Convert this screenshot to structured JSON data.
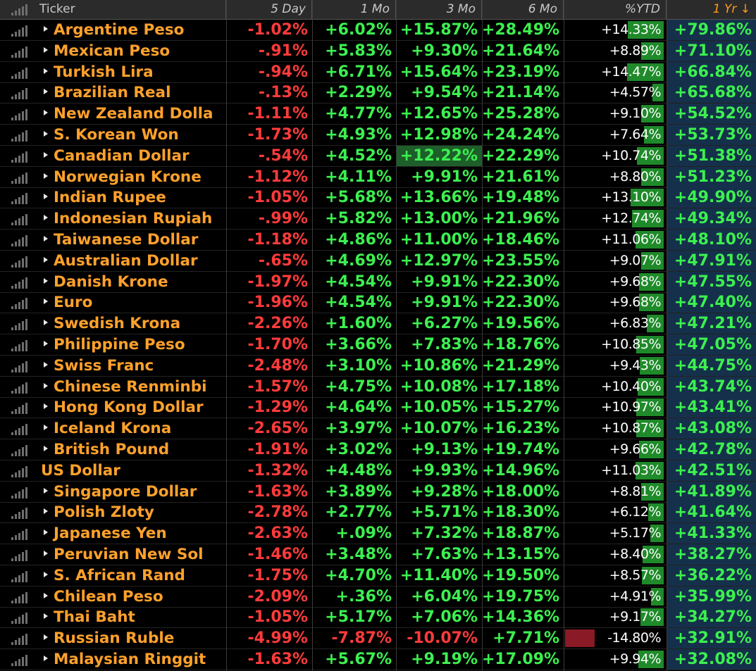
{
  "header": {
    "ticker": "Ticker",
    "d5": "5 Day",
    "m1": "1 Mo",
    "m3": "3 Mo",
    "m6": "6 Mo",
    "ytd": "%YTD",
    "y1": "1 Yr ↓"
  },
  "colors": {
    "positive": "#3cf050",
    "negative": "#ff3b3b",
    "name": "#ffa12b",
    "sorted_header": "#ff9a1a",
    "year_bg": "#15304b",
    "ytd_bar": "#1f8a2a",
    "ytd_neg_bar": "#8a1a25"
  },
  "rows": [
    {
      "name": "Argentine Peso",
      "arrow": true,
      "d5": "-1.02%",
      "m1": "+6.02%",
      "m3": "+15.87%",
      "m6": "+28.49%",
      "ytd_sign": "+",
      "ytd": "14.33%",
      "ytd_level": 0.63,
      "y1": "+79.86%"
    },
    {
      "name": "Mexican Peso",
      "arrow": true,
      "d5": "-.91%",
      "m1": "+5.83%",
      "m3": "+9.30%",
      "m6": "+21.64%",
      "ytd_sign": "+",
      "ytd": "8.89%",
      "ytd_level": 0.39,
      "y1": "+71.10%"
    },
    {
      "name": "Turkish Lira",
      "arrow": true,
      "d5": "-.94%",
      "m1": "+6.71%",
      "m3": "+15.64%",
      "m6": "+23.19%",
      "ytd_sign": "+",
      "ytd": "14.47%",
      "ytd_level": 0.64,
      "y1": "+66.84%"
    },
    {
      "name": "Brazilian Real",
      "arrow": true,
      "d5": "-.13%",
      "m1": "+2.29%",
      "m3": "+9.54%",
      "m6": "+21.14%",
      "ytd_sign": "+",
      "ytd": "4.57%",
      "ytd_level": 0.2,
      "y1": "+65.68%"
    },
    {
      "name": "New Zealand Dolla",
      "arrow": true,
      "d5": "-1.11%",
      "m1": "+4.77%",
      "m3": "+12.65%",
      "m6": "+25.28%",
      "ytd_sign": "+",
      "ytd": "9.10%",
      "ytd_level": 0.4,
      "y1": "+54.52%"
    },
    {
      "name": "S. Korean Won",
      "arrow": true,
      "d5": "-1.73%",
      "m1": "+4.93%",
      "m3": "+12.98%",
      "m6": "+24.24%",
      "ytd_sign": "+",
      "ytd": "7.64%",
      "ytd_level": 0.34,
      "y1": "+53.73%"
    },
    {
      "name": "Canadian Dollar",
      "arrow": true,
      "d5": "-.54%",
      "m1": "+4.52%",
      "m3": "+12.22%",
      "m6": "+22.29%",
      "ytd_sign": "+",
      "ytd": "10.74%",
      "ytd_level": 0.47,
      "y1": "+51.38%",
      "m3_highlight": true
    },
    {
      "name": "Norwegian Krone",
      "arrow": true,
      "d5": "-1.12%",
      "m1": "+4.11%",
      "m3": "+9.91%",
      "m6": "+21.61%",
      "ytd_sign": "+",
      "ytd": "8.80%",
      "ytd_level": 0.39,
      "y1": "+51.23%"
    },
    {
      "name": "Indian Rupee",
      "arrow": true,
      "d5": "-1.05%",
      "m1": "+5.68%",
      "m3": "+13.66%",
      "m6": "+19.48%",
      "ytd_sign": "+",
      "ytd": "13.10%",
      "ytd_level": 0.58,
      "y1": "+49.90%"
    },
    {
      "name": "Indonesian Rupiah",
      "arrow": true,
      "d5": "-.99%",
      "m1": "+5.82%",
      "m3": "+13.00%",
      "m6": "+21.96%",
      "ytd_sign": "+",
      "ytd": "12.74%",
      "ytd_level": 0.56,
      "y1": "+49.34%"
    },
    {
      "name": "Taiwanese Dollar",
      "arrow": true,
      "d5": "-1.18%",
      "m1": "+4.86%",
      "m3": "+11.00%",
      "m6": "+18.46%",
      "ytd_sign": "+",
      "ytd": "11.06%",
      "ytd_level": 0.49,
      "y1": "+48.10%"
    },
    {
      "name": "Australian Dollar",
      "arrow": true,
      "d5": "-.65%",
      "m1": "+4.69%",
      "m3": "+12.97%",
      "m6": "+23.55%",
      "ytd_sign": "+",
      "ytd": "9.07%",
      "ytd_level": 0.4,
      "y1": "+47.91%"
    },
    {
      "name": "Danish Krone",
      "arrow": true,
      "d5": "-1.97%",
      "m1": "+4.54%",
      "m3": "+9.91%",
      "m6": "+22.30%",
      "ytd_sign": "+",
      "ytd": "9.68%",
      "ytd_level": 0.43,
      "y1": "+47.55%"
    },
    {
      "name": "Euro",
      "arrow": true,
      "d5": "-1.96%",
      "m1": "+4.54%",
      "m3": "+9.91%",
      "m6": "+22.30%",
      "ytd_sign": "+",
      "ytd": "9.68%",
      "ytd_level": 0.43,
      "y1": "+47.40%"
    },
    {
      "name": "Swedish Krona",
      "arrow": true,
      "d5": "-2.26%",
      "m1": "+1.60%",
      "m3": "+6.27%",
      "m6": "+19.56%",
      "ytd_sign": "+",
      "ytd": "6.83%",
      "ytd_level": 0.3,
      "y1": "+47.21%"
    },
    {
      "name": "Philippine Peso",
      "arrow": true,
      "d5": "-1.70%",
      "m1": "+3.66%",
      "m3": "+7.83%",
      "m6": "+18.76%",
      "ytd_sign": "+",
      "ytd": "10.85%",
      "ytd_level": 0.48,
      "y1": "+47.05%"
    },
    {
      "name": "Swiss Franc",
      "arrow": true,
      "d5": "-2.48%",
      "m1": "+3.10%",
      "m3": "+10.86%",
      "m6": "+21.29%",
      "ytd_sign": "+",
      "ytd": "9.43%",
      "ytd_level": 0.42,
      "y1": "+44.75%"
    },
    {
      "name": "Chinese Renminbi",
      "arrow": true,
      "d5": "-1.57%",
      "m1": "+4.75%",
      "m3": "+10.08%",
      "m6": "+17.18%",
      "ytd_sign": "+",
      "ytd": "10.40%",
      "ytd_level": 0.46,
      "y1": "+43.74%"
    },
    {
      "name": "Hong Kong Dollar",
      "arrow": true,
      "d5": "-1.29%",
      "m1": "+4.64%",
      "m3": "+10.05%",
      "m6": "+15.27%",
      "ytd_sign": "+",
      "ytd": "10.97%",
      "ytd_level": 0.48,
      "y1": "+43.41%"
    },
    {
      "name": "Iceland Krona",
      "arrow": true,
      "d5": "-2.65%",
      "m1": "+3.97%",
      "m3": "+10.07%",
      "m6": "+16.23%",
      "ytd_sign": "+",
      "ytd": "10.87%",
      "ytd_level": 0.48,
      "y1": "+43.08%"
    },
    {
      "name": "British Pound",
      "arrow": true,
      "d5": "-1.91%",
      "m1": "+3.02%",
      "m3": "+9.13%",
      "m6": "+19.74%",
      "ytd_sign": "+",
      "ytd": "9.66%",
      "ytd_level": 0.43,
      "y1": "+42.78%"
    },
    {
      "name": "US Dollar",
      "arrow": false,
      "d5": "-1.32%",
      "m1": "+4.48%",
      "m3": "+9.93%",
      "m6": "+14.96%",
      "ytd_sign": "+",
      "ytd": "11.03%",
      "ytd_level": 0.49,
      "y1": "+42.51%"
    },
    {
      "name": "Singapore Dollar",
      "arrow": true,
      "d5": "-1.63%",
      "m1": "+3.89%",
      "m3": "+9.28%",
      "m6": "+18.00%",
      "ytd_sign": "+",
      "ytd": "8.81%",
      "ytd_level": 0.39,
      "y1": "+41.89%"
    },
    {
      "name": "Polish Zloty",
      "arrow": true,
      "d5": "-2.78%",
      "m1": "+2.77%",
      "m3": "+5.71%",
      "m6": "+18.30%",
      "ytd_sign": "+",
      "ytd": "6.12%",
      "ytd_level": 0.27,
      "y1": "+41.64%"
    },
    {
      "name": "Japanese Yen",
      "arrow": true,
      "d5": "-2.63%",
      "m1": "+.09%",
      "m3": "+7.32%",
      "m6": "+18.87%",
      "ytd_sign": "+",
      "ytd": "5.17%",
      "ytd_level": 0.23,
      "y1": "+41.33%"
    },
    {
      "name": "Peruvian New Sol",
      "arrow": true,
      "d5": "-1.46%",
      "m1": "+3.48%",
      "m3": "+7.63%",
      "m6": "+13.15%",
      "ytd_sign": "+",
      "ytd": "8.40%",
      "ytd_level": 0.37,
      "y1": "+38.27%"
    },
    {
      "name": "S. African Rand",
      "arrow": true,
      "d5": "-1.75%",
      "m1": "+4.70%",
      "m3": "+11.40%",
      "m6": "+19.50%",
      "ytd_sign": "+",
      "ytd": "8.57%",
      "ytd_level": 0.38,
      "y1": "+36.22%"
    },
    {
      "name": "Chilean Peso",
      "arrow": true,
      "d5": "-2.09%",
      "m1": "+.36%",
      "m3": "+6.04%",
      "m6": "+19.75%",
      "ytd_sign": "+",
      "ytd": "4.91%",
      "ytd_level": 0.22,
      "y1": "+35.99%"
    },
    {
      "name": "Thai Baht",
      "arrow": true,
      "d5": "-1.05%",
      "m1": "+5.17%",
      "m3": "+7.06%",
      "m6": "+14.36%",
      "ytd_sign": "+",
      "ytd": "9.17%",
      "ytd_level": 0.41,
      "y1": "+34.27%"
    },
    {
      "name": "Russian Ruble",
      "arrow": true,
      "d5": "-4.99%",
      "m1": "-7.87%",
      "m3": "-10.07%",
      "m6": "+7.71%",
      "ytd_sign": "-",
      "ytd": "14.80%",
      "ytd_level": -0.65,
      "y1": "+32.91%"
    },
    {
      "name": "Malaysian Ringgit",
      "arrow": true,
      "d5": "-1.63%",
      "m1": "+5.67%",
      "m3": "+9.19%",
      "m6": "+17.09%",
      "ytd_sign": "+",
      "ytd": "9.94%",
      "ytd_level": 0.44,
      "y1": "+32.08%"
    }
  ]
}
